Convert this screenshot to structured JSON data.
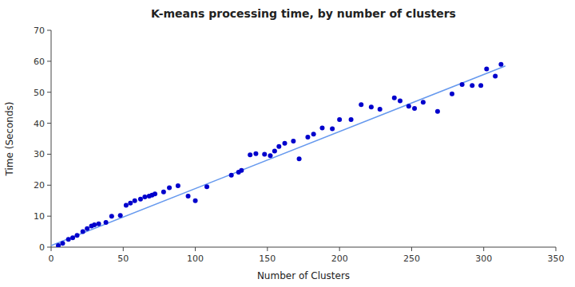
{
  "chart_data": {
    "type": "scatter",
    "title": "K-means processing time, by number of clusters",
    "xlabel": "Number of Clusters",
    "ylabel": "Time (Seconds)",
    "xlim": [
      0,
      350
    ],
    "ylim": [
      0,
      70
    ],
    "xticks": [
      0,
      50,
      100,
      150,
      200,
      250,
      300,
      350
    ],
    "yticks": [
      0,
      10,
      20,
      30,
      40,
      50,
      60,
      70
    ],
    "grid": false,
    "series": [
      {
        "type": "line",
        "color": "#6699ee",
        "line_style": "solid",
        "x": [
          0,
          315
        ],
        "values": [
          0.5,
          58.5
        ]
      },
      {
        "type": "scatter",
        "color": "#0000cc",
        "marker": "circle",
        "x": [
          5,
          8,
          12,
          15,
          18,
          22,
          25,
          28,
          30,
          33,
          38,
          42,
          48,
          52,
          55,
          58,
          62,
          65,
          68,
          70,
          72,
          78,
          82,
          88,
          95,
          100,
          108,
          125,
          130,
          132,
          138,
          142,
          148,
          152,
          155,
          158,
          162,
          168,
          172,
          178,
          182,
          188,
          195,
          200,
          208,
          215,
          222,
          228,
          238,
          242,
          248,
          252,
          258,
          268,
          278,
          285,
          292,
          298,
          302,
          308,
          312
        ],
        "values": [
          0.5,
          1.2,
          2.5,
          3.0,
          3.8,
          5.0,
          6.0,
          6.8,
          7.2,
          7.5,
          8.0,
          10.0,
          10.2,
          13.5,
          14.2,
          15.0,
          15.5,
          16.2,
          16.5,
          16.8,
          17.2,
          17.8,
          19.2,
          19.8,
          16.5,
          15.0,
          19.5,
          23.2,
          24.2,
          24.8,
          29.8,
          30.2,
          30.0,
          29.5,
          31.0,
          32.5,
          33.5,
          34.2,
          28.5,
          35.5,
          36.5,
          38.5,
          38.2,
          41.2,
          41.2,
          46.0,
          45.2,
          44.5,
          48.2,
          47.2,
          45.5,
          44.8,
          46.8,
          43.8,
          49.5,
          52.5,
          52.2,
          52.2,
          57.5,
          55.2,
          59.0
        ]
      }
    ]
  }
}
